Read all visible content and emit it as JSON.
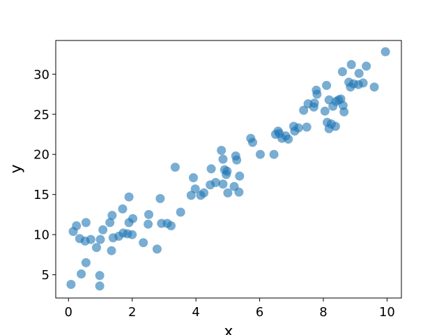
{
  "chart_data": {
    "type": "scatter",
    "title": "",
    "xlabel": "x",
    "ylabel": "y",
    "xlim": [
      -0.4,
      10.45
    ],
    "ylim": [
      2.1,
      34.2
    ],
    "xticks": [
      0,
      2,
      4,
      6,
      8,
      10
    ],
    "yticks": [
      5,
      10,
      15,
      20,
      25,
      30
    ],
    "grid": false,
    "color": "#1f77b4",
    "series": [
      {
        "points": [
          [
            0.08,
            3.8
          ],
          [
            0.15,
            10.4
          ],
          [
            0.25,
            11.1
          ],
          [
            0.35,
            9.5
          ],
          [
            0.4,
            5.1
          ],
          [
            0.52,
            9.2
          ],
          [
            0.55,
            6.5
          ],
          [
            0.55,
            11.5
          ],
          [
            0.7,
            9.4
          ],
          [
            0.88,
            8.4
          ],
          [
            0.98,
            4.9
          ],
          [
            1.0,
            9.4
          ],
          [
            0.98,
            3.6
          ],
          [
            1.08,
            10.6
          ],
          [
            1.3,
            11.5
          ],
          [
            1.35,
            8.0
          ],
          [
            1.37,
            12.4
          ],
          [
            1.4,
            9.6
          ],
          [
            1.58,
            9.8
          ],
          [
            1.7,
            13.2
          ],
          [
            1.72,
            10.2
          ],
          [
            1.85,
            10.1
          ],
          [
            1.9,
            11.5
          ],
          [
            1.9,
            14.7
          ],
          [
            2.0,
            10.0
          ],
          [
            2.02,
            12.0
          ],
          [
            2.35,
            9.0
          ],
          [
            2.5,
            11.3
          ],
          [
            2.52,
            12.5
          ],
          [
            2.78,
            8.2
          ],
          [
            2.88,
            14.5
          ],
          [
            2.92,
            11.4
          ],
          [
            3.1,
            11.4
          ],
          [
            3.22,
            11.1
          ],
          [
            3.35,
            18.4
          ],
          [
            3.52,
            12.8
          ],
          [
            3.85,
            14.9
          ],
          [
            3.92,
            17.1
          ],
          [
            3.98,
            15.7
          ],
          [
            4.15,
            14.9
          ],
          [
            4.25,
            15.2
          ],
          [
            4.45,
            16.2
          ],
          [
            4.48,
            18.2
          ],
          [
            4.62,
            16.5
          ],
          [
            4.8,
            20.5
          ],
          [
            4.85,
            16.3
          ],
          [
            4.85,
            19.4
          ],
          [
            4.9,
            18.1
          ],
          [
            4.95,
            17.5
          ],
          [
            4.98,
            17.9
          ],
          [
            5.0,
            15.2
          ],
          [
            5.2,
            16.0
          ],
          [
            5.25,
            19.8
          ],
          [
            5.28,
            19.3
          ],
          [
            5.35,
            15.3
          ],
          [
            5.37,
            17.3
          ],
          [
            5.72,
            22.0
          ],
          [
            5.78,
            21.5
          ],
          [
            6.02,
            20.0
          ],
          [
            6.45,
            20.0
          ],
          [
            6.5,
            22.5
          ],
          [
            6.58,
            22.9
          ],
          [
            6.62,
            22.6
          ],
          [
            6.7,
            22.0
          ],
          [
            6.82,
            22.3
          ],
          [
            6.9,
            21.9
          ],
          [
            7.07,
            23.5
          ],
          [
            7.1,
            22.9
          ],
          [
            7.22,
            23.3
          ],
          [
            7.38,
            25.5
          ],
          [
            7.48,
            23.4
          ],
          [
            7.52,
            26.3
          ],
          [
            7.7,
            25.9
          ],
          [
            7.72,
            26.4
          ],
          [
            7.78,
            28.0
          ],
          [
            7.8,
            27.5
          ],
          [
            8.05,
            25.4
          ],
          [
            8.1,
            28.6
          ],
          [
            8.12,
            24.0
          ],
          [
            8.18,
            26.8
          ],
          [
            8.18,
            23.2
          ],
          [
            8.25,
            23.8
          ],
          [
            8.3,
            26.0
          ],
          [
            8.38,
            23.5
          ],
          [
            8.4,
            26.6
          ],
          [
            8.48,
            26.8
          ],
          [
            8.55,
            26.9
          ],
          [
            8.6,
            30.3
          ],
          [
            8.62,
            26.1
          ],
          [
            8.65,
            25.3
          ],
          [
            8.8,
            29.0
          ],
          [
            8.85,
            28.4
          ],
          [
            8.88,
            31.2
          ],
          [
            8.95,
            28.8
          ],
          [
            9.1,
            28.7
          ],
          [
            9.12,
            30.1
          ],
          [
            9.25,
            28.9
          ],
          [
            9.35,
            31.0
          ],
          [
            9.6,
            28.4
          ],
          [
            9.95,
            32.8
          ]
        ]
      }
    ]
  }
}
